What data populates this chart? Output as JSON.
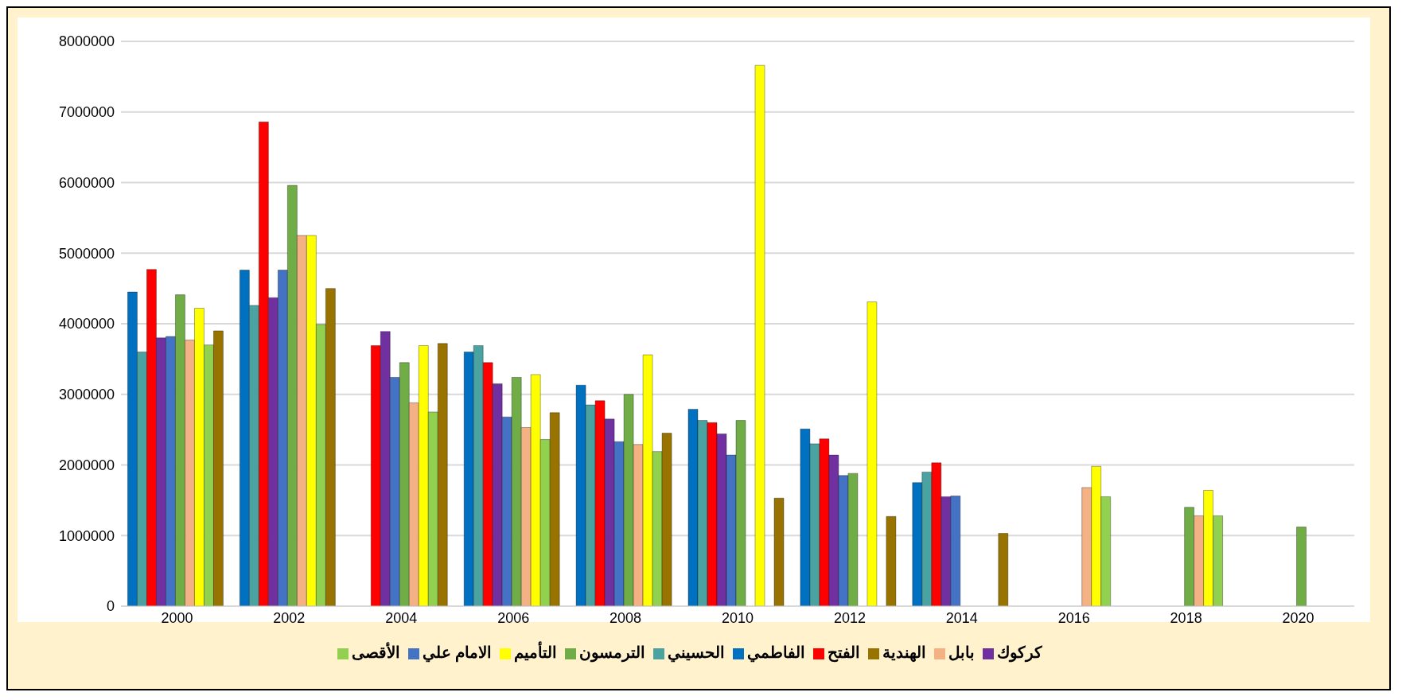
{
  "chart_data": {
    "type": "bar",
    "categories": [
      "2000",
      "2002",
      "2004",
      "2006",
      "2008",
      "2010",
      "2012",
      "2014",
      "2016",
      "2018",
      "2020"
    ],
    "series": [
      {
        "name": "الفاطمي",
        "color": "#0070c0",
        "values": [
          4450000,
          4760000,
          0,
          3600000,
          3130000,
          2790000,
          2510000,
          1750000,
          0,
          0,
          0
        ]
      },
      {
        "name": "الحسيني",
        "color": "#4aa3a0",
        "values": [
          3600000,
          4260000,
          0,
          3690000,
          2850000,
          2630000,
          2300000,
          1900000,
          0,
          0,
          0
        ]
      },
      {
        "name": "الفتح",
        "color": "#ff0000",
        "values": [
          4770000,
          6860000,
          3690000,
          3450000,
          2910000,
          2600000,
          2370000,
          2030000,
          0,
          0,
          0
        ]
      },
      {
        "name": "كركوك",
        "color": "#7030a0",
        "values": [
          3800000,
          4370000,
          3890000,
          3150000,
          2650000,
          2440000,
          2140000,
          1550000,
          0,
          0,
          0
        ]
      },
      {
        "name": "الامام علي",
        "color": "#4472c4",
        "values": [
          3820000,
          4760000,
          3240000,
          2680000,
          2330000,
          2140000,
          1850000,
          1560000,
          0,
          0,
          0
        ]
      },
      {
        "name": "الترمسون",
        "color": "#70ad47",
        "values": [
          4410000,
          5960000,
          3450000,
          3240000,
          3000000,
          2630000,
          1880000,
          0,
          0,
          1400000,
          1120000
        ]
      },
      {
        "name": "بابل",
        "color": "#f4b183",
        "values": [
          3770000,
          5250000,
          2880000,
          2530000,
          2290000,
          0,
          0,
          0,
          1680000,
          1280000,
          0
        ]
      },
      {
        "name": "التأميم",
        "color": "#ffff00",
        "values": [
          4220000,
          5250000,
          3690000,
          3280000,
          3560000,
          7660000,
          4310000,
          0,
          1980000,
          1640000,
          0
        ]
      },
      {
        "name": "الأقصى",
        "color": "#92d050",
        "values": [
          3700000,
          3990000,
          2750000,
          2360000,
          2190000,
          0,
          0,
          0,
          1550000,
          1280000,
          0
        ]
      },
      {
        "name": "الهندية",
        "color": "#997300",
        "values": [
          3900000,
          4500000,
          3720000,
          2740000,
          2450000,
          1530000,
          1270000,
          1030000,
          0,
          0,
          0
        ]
      }
    ],
    "ylim": [
      0,
      8000000
    ],
    "yticks": [
      0,
      1000000,
      2000000,
      3000000,
      4000000,
      5000000,
      6000000,
      7000000,
      8000000
    ],
    "grid": "y",
    "legend": "bottom"
  }
}
